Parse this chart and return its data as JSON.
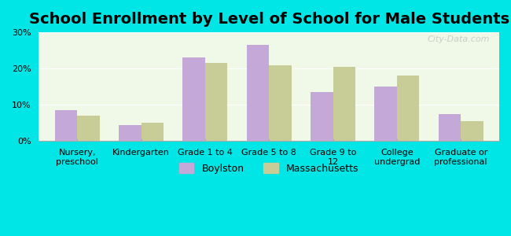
{
  "title": "School Enrollment by Level of School for Male Students",
  "categories": [
    "Nursery,\npreschool",
    "Kindergarten",
    "Grade 1 to 4",
    "Grade 5 to 8",
    "Grade 9 to\n12",
    "College\nundergrad",
    "Graduate or\nprofessional"
  ],
  "boylston": [
    8.5,
    4.5,
    23.0,
    26.5,
    13.5,
    15.0,
    7.5
  ],
  "massachusetts": [
    7.0,
    5.0,
    21.5,
    21.0,
    20.5,
    18.0,
    5.5
  ],
  "boylston_color": "#c4a8d8",
  "massachusetts_color": "#c8cc96",
  "background_color": "#00e5e5",
  "plot_bg_start": "#f0f8e8",
  "plot_bg_end": "#ffffff",
  "ylim": [
    0,
    30
  ],
  "yticks": [
    0,
    10,
    20,
    30
  ],
  "ytick_labels": [
    "0%",
    "10%",
    "20%",
    "30%"
  ],
  "bar_width": 0.35,
  "title_fontsize": 14,
  "tick_fontsize": 8,
  "legend_labels": [
    "Boylston",
    "Massachusetts"
  ],
  "watermark": "City-Data.com"
}
